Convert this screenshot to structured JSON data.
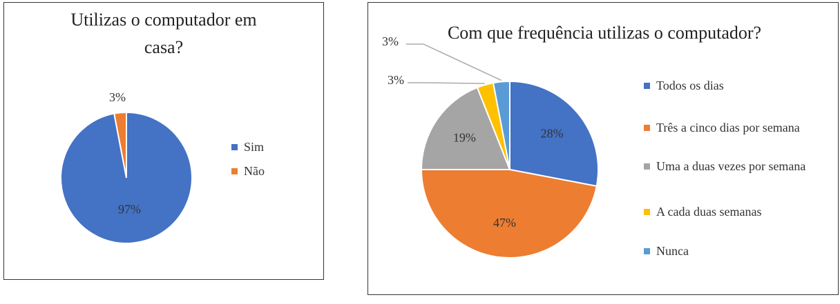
{
  "chart_data": [
    {
      "type": "pie",
      "title": "Utilizas o computador em casa?",
      "categories": [
        "Sim",
        "Não"
      ],
      "values": [
        97,
        3
      ],
      "value_labels": [
        "97%",
        "3%"
      ],
      "colors": [
        "#4472c4",
        "#ed7d31"
      ],
      "legend": "right"
    },
    {
      "type": "pie",
      "title": "Com que frequência utilizas o computador?",
      "categories": [
        "Todos os dias",
        "Três a cinco dias por semana",
        "Uma a duas vezes por semana",
        "A cada duas semanas",
        "Nunca"
      ],
      "values": [
        28,
        47,
        19,
        3,
        3
      ],
      "value_labels": [
        "28%",
        "47%",
        "19%",
        "3%",
        "3%"
      ],
      "colors": [
        "#4472c4",
        "#ed7d31",
        "#a5a5a5",
        "#ffc000",
        "#5b9bd5"
      ],
      "legend": "right"
    }
  ]
}
